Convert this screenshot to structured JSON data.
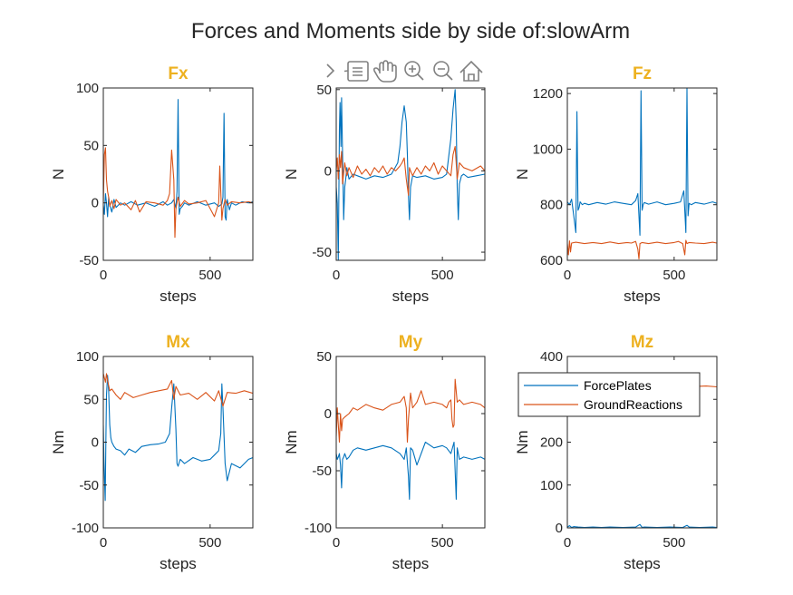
{
  "figure": {
    "suptitle": "Forces and Moments side by side of:slowArm",
    "title_color": "#EDB120",
    "toolbar_icons": [
      "chevron-right-icon",
      "data-tips-icon",
      "pan-hand-icon",
      "zoom-in-icon",
      "zoom-out-icon",
      "home-icon"
    ]
  },
  "chart_data": [
    {
      "type": "line",
      "title": "Fx",
      "xlabel": "steps",
      "ylabel": "N",
      "xlim": [
        0,
        700
      ],
      "ylim": [
        -50,
        100
      ],
      "xticks": [
        0,
        500
      ],
      "yticks": [
        -50,
        0,
        50,
        100
      ],
      "grid": false,
      "series": [
        {
          "color": "#0072BD",
          "x": [
            0,
            5,
            10,
            15,
            20,
            25,
            30,
            40,
            50,
            60,
            80,
            100,
            130,
            160,
            200,
            240,
            280,
            300,
            320,
            330,
            340,
            345,
            350,
            355,
            360,
            370,
            380,
            400,
            440,
            480,
            520,
            540,
            555,
            560,
            565,
            570,
            575,
            580,
            590,
            600,
            620,
            650,
            680,
            700
          ],
          "y": [
            -2,
            -10,
            8,
            0,
            -12,
            5,
            -2,
            -8,
            3,
            -4,
            0,
            -2,
            1,
            -2,
            0,
            -3,
            1,
            -2,
            0,
            3,
            -5,
            10,
            90,
            -10,
            -5,
            -3,
            0,
            -2,
            1,
            -2,
            0,
            -3,
            -1,
            5,
            78,
            -12,
            -15,
            3,
            -6,
            0,
            -2,
            1,
            0,
            1
          ]
        },
        {
          "color": "#D95319",
          "x": [
            0,
            5,
            10,
            15,
            20,
            25,
            30,
            40,
            50,
            60,
            80,
            100,
            130,
            150,
            170,
            200,
            240,
            280,
            300,
            310,
            320,
            330,
            335,
            340,
            350,
            360,
            380,
            400,
            440,
            480,
            500,
            520,
            540,
            545,
            550,
            555,
            560,
            570,
            580,
            600,
            640,
            680,
            700
          ],
          "y": [
            0,
            42,
            48,
            20,
            10,
            5,
            -3,
            2,
            -5,
            3,
            -2,
            0,
            -6,
            2,
            -8,
            1,
            0,
            -2,
            2,
            8,
            46,
            20,
            -30,
            -5,
            5,
            -3,
            2,
            -1,
            0,
            2,
            -5,
            -12,
            0,
            32,
            10,
            -15,
            -5,
            3,
            -2,
            1,
            0,
            1,
            0
          ]
        }
      ]
    },
    {
      "type": "line",
      "title": "",
      "xlabel": "steps",
      "ylabel": "N",
      "xlim": [
        0,
        700
      ],
      "ylim": [
        -55,
        51
      ],
      "xticks": [
        0,
        500
      ],
      "yticks": [
        -50,
        0,
        50
      ],
      "grid": false,
      "series": [
        {
          "color": "#0072BD",
          "x": [
            0,
            5,
            10,
            15,
            18,
            22,
            25,
            30,
            35,
            40,
            45,
            50,
            60,
            80,
            100,
            140,
            180,
            220,
            260,
            290,
            300,
            310,
            320,
            330,
            335,
            340,
            345,
            350,
            360,
            380,
            420,
            460,
            500,
            520,
            540,
            550,
            560,
            565,
            570,
            575,
            580,
            590,
            600,
            620,
            660,
            700
          ],
          "y": [
            -10,
            -20,
            -55,
            25,
            42,
            15,
            45,
            10,
            -30,
            -10,
            -5,
            2,
            -5,
            -2,
            -3,
            -5,
            -3,
            -4,
            -2,
            5,
            15,
            30,
            40,
            30,
            10,
            -15,
            -30,
            -10,
            -3,
            -4,
            -3,
            -5,
            -4,
            -2,
            20,
            38,
            50,
            30,
            -10,
            -30,
            -8,
            -3,
            -2,
            -4,
            -3,
            -2
          ]
        },
        {
          "color": "#D95319",
          "x": [
            0,
            5,
            10,
            15,
            20,
            25,
            30,
            40,
            50,
            60,
            80,
            100,
            120,
            140,
            160,
            180,
            200,
            220,
            240,
            260,
            280,
            300,
            310,
            320,
            330,
            340,
            345,
            350,
            360,
            380,
            400,
            420,
            440,
            460,
            480,
            500,
            520,
            540,
            550,
            560,
            570,
            580,
            600,
            640,
            680,
            700
          ],
          "y": [
            0,
            8,
            -5,
            10,
            2,
            12,
            -8,
            5,
            -3,
            2,
            -4,
            3,
            -2,
            1,
            -3,
            2,
            -1,
            3,
            -2,
            2,
            0,
            3,
            5,
            8,
            -5,
            -15,
            2,
            0,
            -3,
            2,
            -2,
            3,
            0,
            5,
            -2,
            3,
            0,
            -3,
            10,
            15,
            -5,
            5,
            2,
            0,
            3,
            0
          ]
        }
      ]
    },
    {
      "type": "line",
      "title": "Fz",
      "xlabel": "steps",
      "ylabel": "N",
      "xlim": [
        0,
        700
      ],
      "ylim": [
        600,
        1220
      ],
      "xticks": [
        0,
        500
      ],
      "yticks": [
        600,
        800,
        1000,
        1200
      ],
      "grid": false,
      "series": [
        {
          "color": "#0072BD",
          "x": [
            0,
            10,
            20,
            30,
            40,
            45,
            50,
            55,
            60,
            70,
            80,
            100,
            140,
            180,
            220,
            260,
            300,
            320,
            330,
            340,
            345,
            350,
            355,
            360,
            380,
            420,
            460,
            500,
            530,
            545,
            555,
            560,
            565,
            570,
            580,
            600,
            640,
            680,
            700
          ],
          "y": [
            810,
            800,
            820,
            760,
            700,
            1135,
            780,
            790,
            810,
            800,
            805,
            800,
            808,
            802,
            810,
            805,
            800,
            815,
            840,
            690,
            1210,
            780,
            800,
            808,
            802,
            810,
            800,
            805,
            810,
            850,
            700,
            1220,
            760,
            805,
            800,
            808,
            802,
            810,
            805
          ]
        },
        {
          "color": "#D95319",
          "x": [
            0,
            5,
            10,
            15,
            20,
            40,
            80,
            120,
            160,
            200,
            240,
            280,
            300,
            320,
            330,
            335,
            340,
            350,
            380,
            420,
            460,
            500,
            520,
            540,
            550,
            555,
            560,
            570,
            600,
            640,
            680,
            700
          ],
          "y": [
            660,
            620,
            670,
            630,
            662,
            665,
            660,
            664,
            660,
            666,
            660,
            664,
            662,
            668,
            640,
            605,
            660,
            664,
            660,
            665,
            660,
            664,
            668,
            660,
            620,
            672,
            660,
            664,
            662,
            660,
            665,
            662
          ]
        }
      ]
    },
    {
      "type": "line",
      "title": "Mx",
      "xlabel": "steps",
      "ylabel": "Nm",
      "xlim": [
        0,
        700
      ],
      "ylim": [
        -100,
        100
      ],
      "xticks": [
        0,
        500
      ],
      "yticks": [
        -100,
        -50,
        0,
        50,
        100
      ],
      "grid": false,
      "series": [
        {
          "color": "#0072BD",
          "x": [
            0,
            3,
            6,
            9,
            12,
            15,
            20,
            25,
            30,
            35,
            40,
            50,
            60,
            80,
            100,
            120,
            150,
            180,
            220,
            260,
            290,
            310,
            320,
            330,
            340,
            345,
            350,
            360,
            380,
            420,
            460,
            500,
            520,
            540,
            550,
            555,
            560,
            570,
            580,
            600,
            640,
            680,
            700
          ],
          "y": [
            20,
            -20,
            -45,
            -68,
            0,
            55,
            78,
            60,
            20,
            5,
            0,
            -5,
            -8,
            -10,
            -15,
            -8,
            -12,
            -5,
            -3,
            -2,
            0,
            10,
            40,
            68,
            15,
            -25,
            -28,
            -20,
            -25,
            -18,
            -22,
            -20,
            -15,
            -10,
            10,
            68,
            40,
            -25,
            -45,
            -25,
            -30,
            -20,
            -18
          ]
        },
        {
          "color": "#D95319",
          "x": [
            0,
            5,
            10,
            15,
            20,
            30,
            40,
            60,
            80,
            100,
            140,
            180,
            220,
            260,
            300,
            320,
            330,
            340,
            360,
            400,
            440,
            480,
            520,
            540,
            560,
            580,
            620,
            660,
            700
          ],
          "y": [
            80,
            75,
            70,
            80,
            72,
            60,
            62,
            55,
            50,
            58,
            52,
            55,
            58,
            60,
            62,
            72,
            50,
            65,
            55,
            57,
            50,
            58,
            48,
            60,
            42,
            58,
            57,
            60,
            57
          ]
        }
      ]
    },
    {
      "type": "line",
      "title": "My",
      "xlabel": "steps",
      "ylabel": "Nm",
      "xlim": [
        0,
        700
      ],
      "ylim": [
        -100,
        50
      ],
      "xticks": [
        0,
        500
      ],
      "yticks": [
        -100,
        -50,
        0,
        50
      ],
      "grid": false,
      "series": [
        {
          "color": "#0072BD",
          "x": [
            0,
            5,
            10,
            15,
            20,
            25,
            30,
            35,
            40,
            50,
            60,
            80,
            100,
            140,
            180,
            220,
            260,
            300,
            320,
            330,
            340,
            345,
            350,
            360,
            380,
            420,
            460,
            500,
            520,
            540,
            555,
            560,
            565,
            570,
            580,
            600,
            640,
            680,
            700
          ],
          "y": [
            -35,
            -40,
            -38,
            -35,
            -45,
            -65,
            -40,
            -38,
            -35,
            -40,
            -38,
            -32,
            -30,
            -32,
            -30,
            -28,
            -30,
            -35,
            -40,
            -30,
            -55,
            -75,
            -30,
            -32,
            -45,
            -25,
            -30,
            -28,
            -30,
            -35,
            -25,
            -50,
            -75,
            -30,
            -40,
            -38,
            -40,
            -38,
            -40
          ]
        },
        {
          "color": "#D95319",
          "x": [
            0,
            5,
            10,
            15,
            20,
            25,
            30,
            40,
            60,
            80,
            100,
            140,
            180,
            220,
            260,
            300,
            320,
            330,
            335,
            340,
            350,
            360,
            380,
            400,
            420,
            460,
            500,
            520,
            530,
            540,
            545,
            550,
            555,
            560,
            570,
            580,
            600,
            640,
            680,
            700
          ],
          "y": [
            -20,
            5,
            -10,
            -25,
            0,
            -15,
            -5,
            -3,
            0,
            5,
            3,
            8,
            5,
            3,
            8,
            10,
            15,
            5,
            -25,
            -5,
            18,
            5,
            10,
            20,
            8,
            10,
            8,
            5,
            10,
            12,
            -5,
            -12,
            -10,
            30,
            10,
            12,
            8,
            10,
            8,
            5
          ]
        }
      ]
    },
    {
      "type": "line",
      "title": "Mz",
      "xlabel": "steps",
      "ylabel": "Nm",
      "xlim": [
        0,
        700
      ],
      "ylim": [
        0,
        400
      ],
      "xticks": [
        0,
        500
      ],
      "yticks": [
        0,
        100,
        200,
        300,
        400
      ],
      "grid": false,
      "legend": {
        "location": "top-left",
        "entries": [
          "ForcePlates",
          "GroundReactions"
        ]
      },
      "series": [
        {
          "color": "#0072BD",
          "name": "ForcePlates",
          "x": [
            0,
            10,
            20,
            30,
            50,
            80,
            120,
            160,
            200,
            260,
            320,
            340,
            350,
            360,
            420,
            480,
            540,
            560,
            570,
            620,
            680,
            700
          ],
          "y": [
            2,
            5,
            1,
            3,
            2,
            1,
            2,
            1,
            2,
            1,
            2,
            8,
            1,
            2,
            1,
            2,
            1,
            6,
            2,
            1,
            2,
            1
          ]
        },
        {
          "color": "#D95319",
          "name": "GroundReactions",
          "x": [
            0,
            50,
            100,
            150,
            200,
            250,
            300,
            350,
            400,
            450,
            500,
            550,
            600,
            650,
            700
          ],
          "y": [
            330,
            333,
            328,
            331,
            330,
            333,
            329,
            332,
            330,
            331,
            329,
            332,
            330,
            331,
            329
          ]
        }
      ]
    }
  ]
}
